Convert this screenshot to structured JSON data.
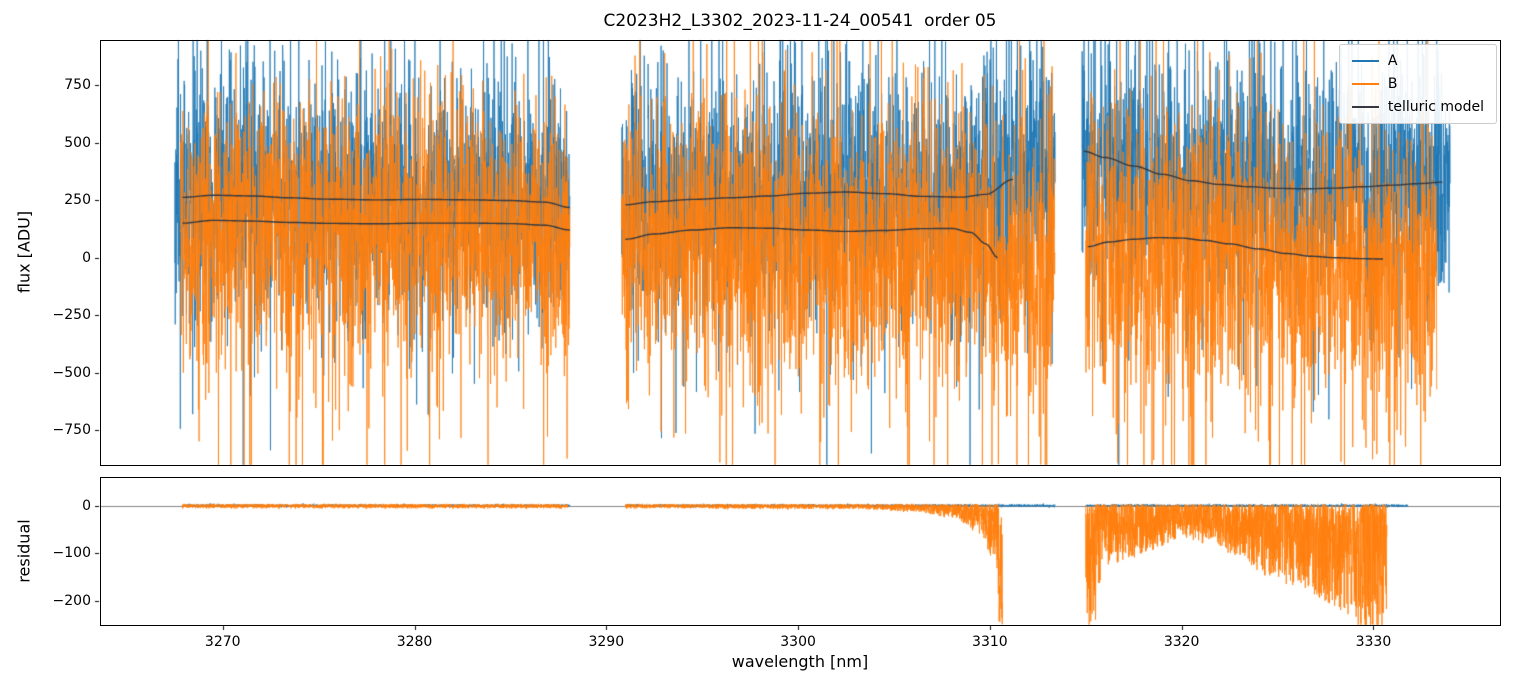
{
  "title": "C2023H2_L3302_2023-11-24_00541  order 05",
  "axes": {
    "flux_label": "flux [ADU]",
    "residual_label": "residual",
    "x_label": "wavelength [nm]"
  },
  "legend": [
    {
      "label": "A",
      "color": "#1f77b4"
    },
    {
      "label": "B",
      "color": "#ff7f0e"
    },
    {
      "label": "telluric model",
      "color": "#35393f"
    }
  ],
  "chart_data": {
    "type": "line",
    "title": "C2023H2_L3302_2023-11-24_00541  order 05",
    "xlabel": "wavelength [nm]",
    "x_range": [
      3263.6,
      3336.6
    ],
    "x_ticks": [
      3270,
      3280,
      3290,
      3300,
      3310,
      3320,
      3330
    ],
    "seed": 11,
    "points_per_nm": {
      "flux": 90,
      "residual": 130
    },
    "flux_panel": {
      "ylabel": "flux [ADU]",
      "y_range": [
        -900,
        945
      ],
      "y_ticks": [
        -750,
        -500,
        -250,
        0,
        250,
        500,
        750
      ],
      "series": [
        {
          "name": "A",
          "color": "#1f77b4",
          "noise": {
            "std": 250,
            "tail_p": 0.1,
            "tail_amp": 480,
            "tail_up_frac": 0.68,
            "mean_offset": 0
          },
          "segments": [
            [
              3267.5,
              3288.1
            ],
            [
              3290.8,
              3313.4
            ],
            [
              3314.8,
              3334.0
            ]
          ]
        },
        {
          "name": "B",
          "color": "#ff7f0e",
          "noise": {
            "std": 285,
            "tail_p": 0.12,
            "tail_amp": 520,
            "tail_up_frac": 0.3,
            "mean_offset": -40
          },
          "segments": [
            [
              3267.8,
              3288.1
            ],
            [
              3290.8,
              3313.4
            ],
            [
              3315.0,
              3333.3
            ]
          ]
        }
      ],
      "telluric": {
        "name": "telluric model",
        "color": "#35393f",
        "A": [
          [
            [
              3267.9,
              262
            ],
            [
              3269.5,
              271
            ],
            [
              3271.5,
              268
            ],
            [
              3273.5,
              260
            ],
            [
              3275.5,
              254
            ],
            [
              3278,
              251
            ],
            [
              3280.5,
              253
            ],
            [
              3283,
              251
            ],
            [
              3285,
              248
            ],
            [
              3286.8,
              241
            ],
            [
              3288.1,
              218
            ]
          ],
          [
            [
              3291.0,
              230
            ],
            [
              3292.5,
              243
            ],
            [
              3294.5,
              253
            ],
            [
              3296.5,
              260
            ],
            [
              3298.5,
              268
            ],
            [
              3300.5,
              280
            ],
            [
              3302.5,
              285
            ],
            [
              3304.5,
              278
            ],
            [
              3306.5,
              266
            ],
            [
              3308.5,
              263
            ],
            [
              3309.8,
              275
            ],
            [
              3311.2,
              340
            ]
          ],
          [
            [
              3314.9,
              462
            ],
            [
              3316,
              435
            ],
            [
              3317.5,
              398
            ],
            [
              3319,
              362
            ],
            [
              3320.5,
              334
            ],
            [
              3322,
              318
            ],
            [
              3323.5,
              308
            ],
            [
              3325,
              301
            ],
            [
              3326.5,
              299
            ],
            [
              3328,
              302
            ],
            [
              3329.5,
              308
            ],
            [
              3331,
              315
            ],
            [
              3332.5,
              322
            ],
            [
              3333.6,
              328
            ]
          ]
        ],
        "B": [
          [
            [
              3267.9,
              150
            ],
            [
              3269.5,
              162
            ],
            [
              3271.5,
              159
            ],
            [
              3273.5,
              153
            ],
            [
              3275.5,
              149
            ],
            [
              3278,
              147
            ],
            [
              3280.5,
              150
            ],
            [
              3283,
              150
            ],
            [
              3285,
              148
            ],
            [
              3286.8,
              141
            ],
            [
              3288.1,
              120
            ]
          ],
          [
            [
              3291.0,
              80
            ],
            [
              3292.5,
              103
            ],
            [
              3294.5,
              120
            ],
            [
              3296.5,
              130
            ],
            [
              3298.5,
              128
            ],
            [
              3300.5,
              120
            ],
            [
              3302.5,
              114
            ],
            [
              3304.5,
              118
            ],
            [
              3306.5,
              126
            ],
            [
              3308,
              127
            ],
            [
              3309,
              110
            ],
            [
              3309.8,
              60
            ],
            [
              3310.4,
              0
            ]
          ],
          [
            [
              3315.1,
              48
            ],
            [
              3316.2,
              68
            ],
            [
              3317.5,
              80
            ],
            [
              3318.8,
              87
            ],
            [
              3320,
              85
            ],
            [
              3321.2,
              75
            ],
            [
              3322.5,
              60
            ],
            [
              3324,
              38
            ],
            [
              3325.5,
              18
            ],
            [
              3326.8,
              6
            ],
            [
              3328,
              0
            ],
            [
              3329.3,
              -4
            ],
            [
              3330.5,
              -6
            ]
          ]
        ]
      }
    },
    "residual_panel": {
      "ylabel": "residual",
      "y_range": [
        -250,
        60
      ],
      "y_ticks": [
        -200,
        -100,
        0
      ],
      "series": [
        {
          "name": "A",
          "color": "#1f77b4",
          "type": "gauss",
          "noise": 1.3,
          "segments": [
            [
              3267.9,
              3288.1
            ],
            [
              3291.0,
              3313.4
            ],
            [
              3315.0,
              3331.8
            ]
          ]
        },
        {
          "name": "B",
          "color": "#ff7f0e",
          "type": "envelope",
          "pos_noise": 4,
          "power": 1.7,
          "segments": [
            {
              "x": [
                3267.9,
                3288.0
              ],
              "envelope": [
                [
                  3267.9,
                  -7
                ],
                [
                  3288.0,
                  -7
                ]
              ]
            },
            {
              "x": [
                3291.0,
                3310.65
              ],
              "envelope": [
                [
                  3291.0,
                  -7
                ],
                [
                  3303,
                  -9
                ],
                [
                  3306,
                  -14
                ],
                [
                  3308,
                  -26
                ],
                [
                  3309.5,
                  -60
                ],
                [
                  3310.1,
                  -110
                ],
                [
                  3310.3,
                  -120
                ],
                [
                  3310.5,
                  -270
                ],
                [
                  3310.65,
                  -270
                ]
              ]
            },
            {
              "x": [
                3315.0,
                3330.7
              ],
              "envelope": [
                [
                  3315.0,
                  -265
                ],
                [
                  3315.5,
                  -245
                ],
                [
                  3315.9,
                  -130
                ],
                [
                  3317,
                  -118
                ],
                [
                  3318.5,
                  -95
                ],
                [
                  3320,
                  -70
                ],
                [
                  3321.5,
                  -82
                ],
                [
                  3323,
                  -112
                ],
                [
                  3324.5,
                  -150
                ],
                [
                  3326,
                  -175
                ],
                [
                  3327.5,
                  -205
                ],
                [
                  3328.6,
                  -232
                ],
                [
                  3329.4,
                  -265
                ],
                [
                  3330.7,
                  -275
                ]
              ]
            }
          ]
        }
      ]
    }
  }
}
